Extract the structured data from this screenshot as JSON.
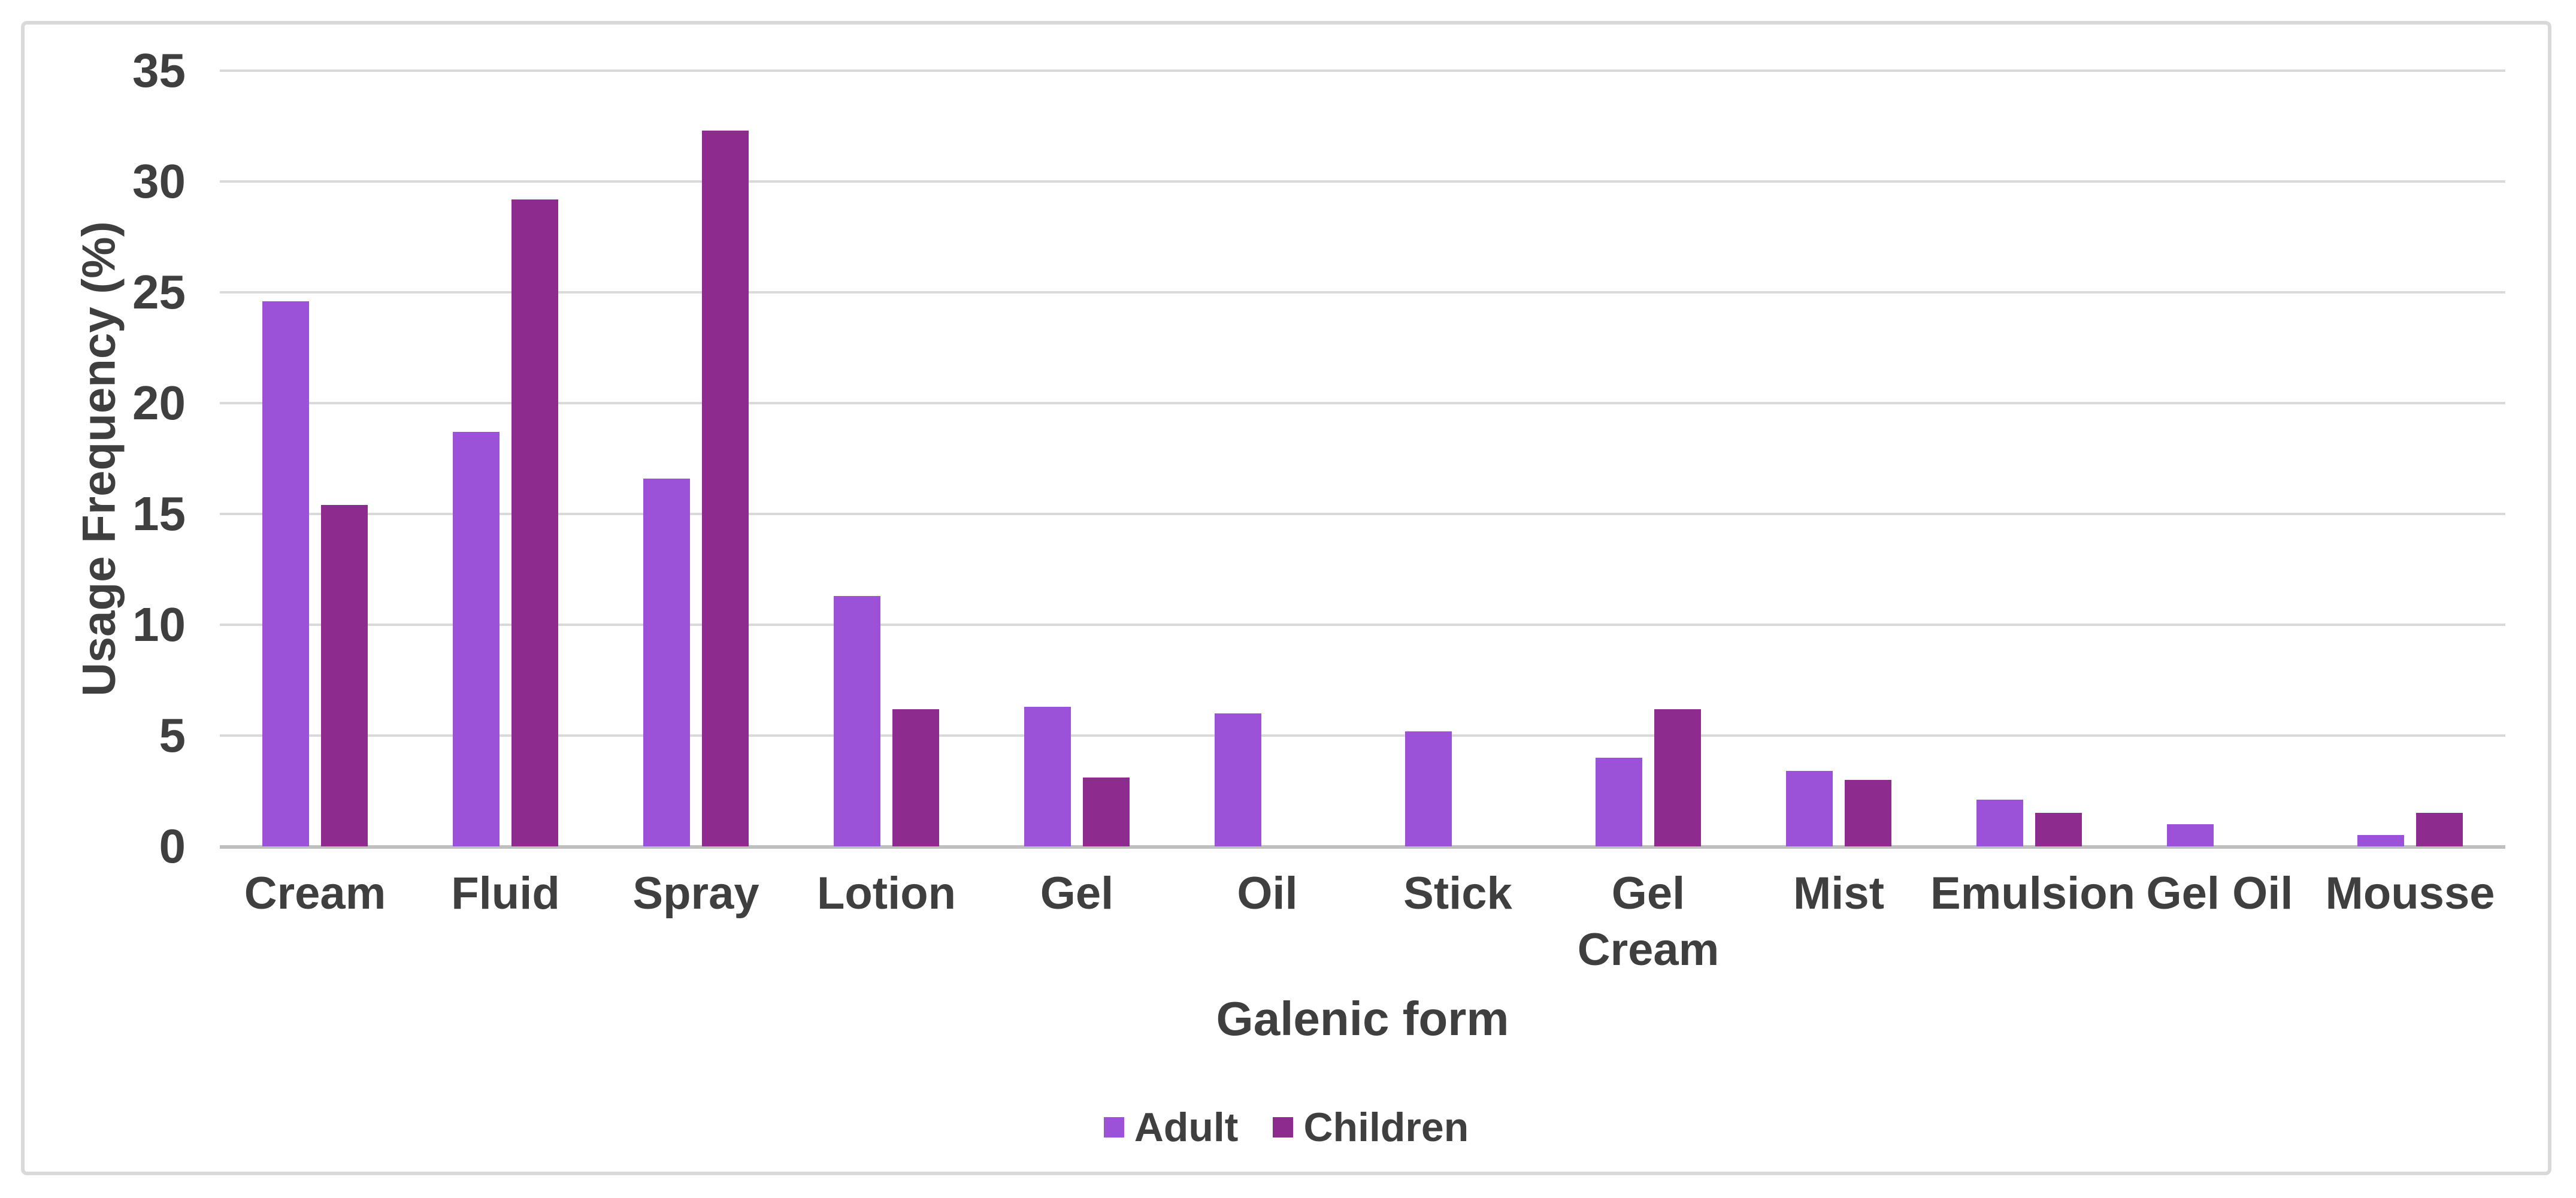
{
  "figure": {
    "background_color": "#ffffff",
    "border_color": "#d9d9d9",
    "gridline_color": "#d9d9d9",
    "axis_line_color": "#bfbfbf",
    "text_color": "#3f3f3f"
  },
  "chart_data": {
    "type": "bar",
    "title": "",
    "categories": [
      "Cream",
      "Fluid",
      "Spray",
      "Lotion",
      "Gel",
      "Oil",
      "Stick",
      "Gel Cream",
      "Mist",
      "Emulsion",
      "Gel Oil",
      "Mousse"
    ],
    "series": [
      {
        "name": "Adult",
        "color": "#9b51d8",
        "values": [
          24.6,
          18.7,
          16.6,
          11.3,
          6.3,
          6.0,
          5.2,
          4.0,
          3.4,
          2.1,
          1.0,
          0.5
        ]
      },
      {
        "name": "Children",
        "color": "#8e2b8e",
        "values": [
          15.4,
          29.2,
          32.3,
          6.2,
          3.1,
          0,
          0,
          6.2,
          3.0,
          1.5,
          0,
          1.5
        ]
      }
    ],
    "xlabel": "Galenic form",
    "ylabel": "Usage Frequency (%)",
    "ylim": [
      0,
      35
    ],
    "ytick_step": 5,
    "yticks": [
      "0",
      "5",
      "10",
      "15",
      "20",
      "25",
      "30",
      "35"
    ],
    "grid": true,
    "legend_position": "bottom-center",
    "legend_entries": [
      "Adult",
      "Children"
    ]
  }
}
